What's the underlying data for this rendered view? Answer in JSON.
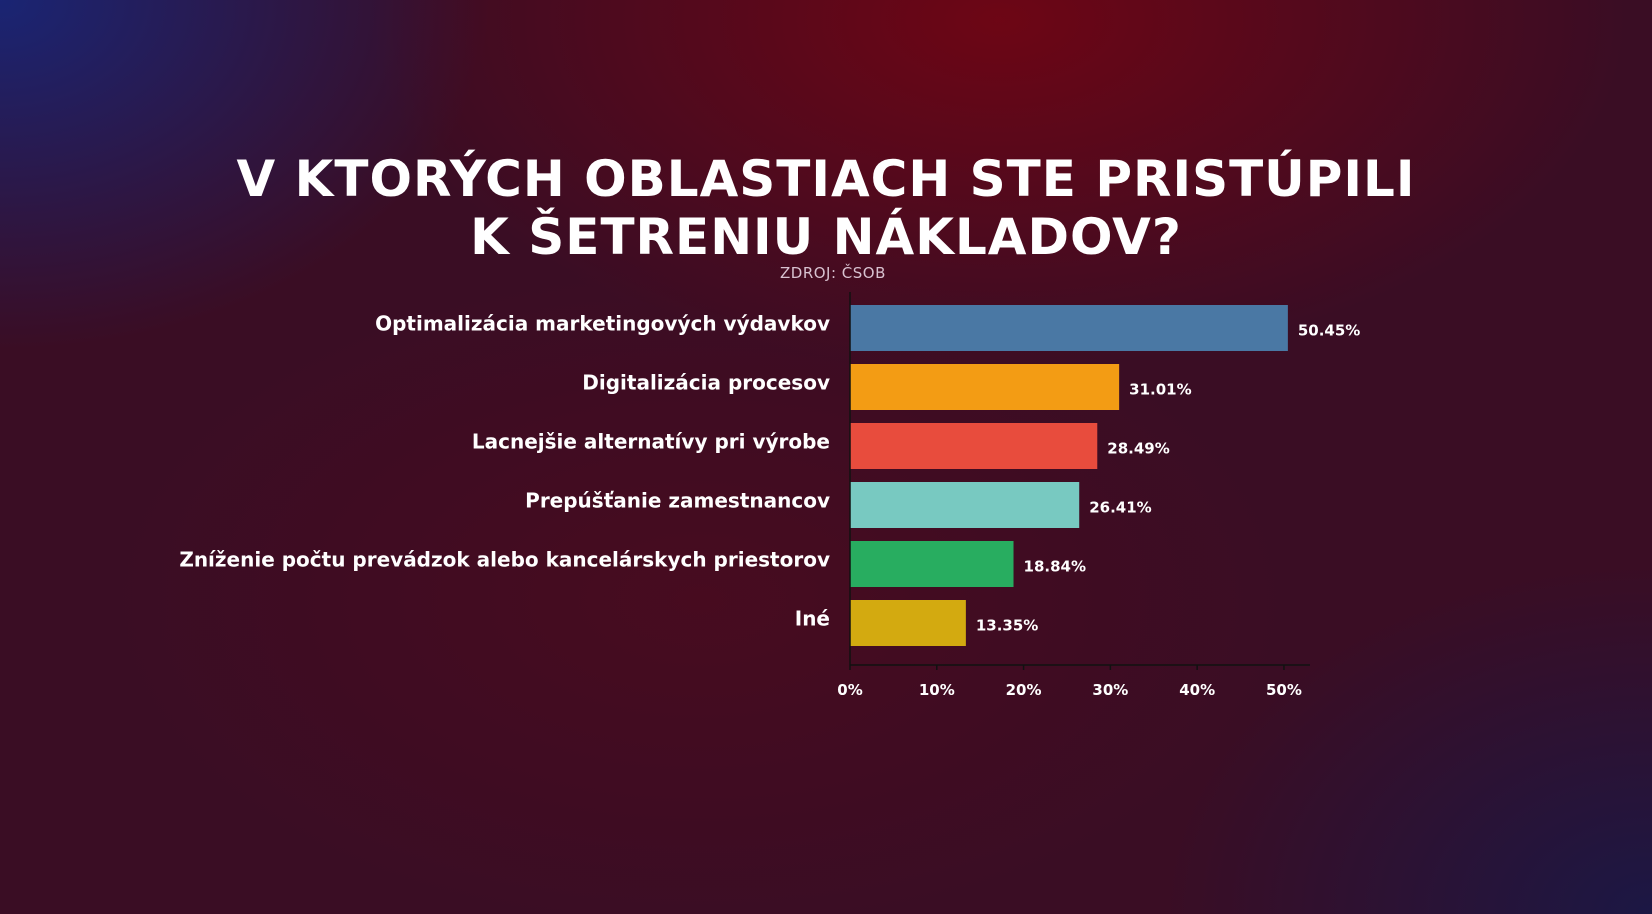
{
  "title_lines": [
    "V KTORÝCH OBLASTIACH STE PRISTÚPILI",
    "K ŠETRENIU NÁKLADOV?"
  ],
  "source": "ZDROJ: ČSOB",
  "chart_data": {
    "type": "bar",
    "orientation": "horizontal",
    "categories": [
      "Optimalizácia marketingových výdavkov",
      "Digitalizácia procesov",
      "Lacnejšie alternatívy pri výrobe",
      "Prepúšťanie zamestnancov",
      "Zníženie počtu prevádzok alebo kancelárskych priestorov",
      "Iné"
    ],
    "values": [
      50.45,
      31.01,
      28.49,
      26.41,
      18.84,
      13.35
    ],
    "value_labels": [
      "50.45%",
      "31.01%",
      "28.49%",
      "26.41%",
      "18.84%",
      "13.35%"
    ],
    "colors": [
      "#4a78a4",
      "#f39c14",
      "#e84c3d",
      "#78c9c1",
      "#28ad60",
      "#d3aa10"
    ],
    "xlim": [
      0,
      53
    ],
    "xticks": [
      0,
      10,
      20,
      30,
      40,
      50
    ],
    "xtick_labels": [
      "0%",
      "10%",
      "20%",
      "30%",
      "40%",
      "50%"
    ],
    "grid": false
  }
}
